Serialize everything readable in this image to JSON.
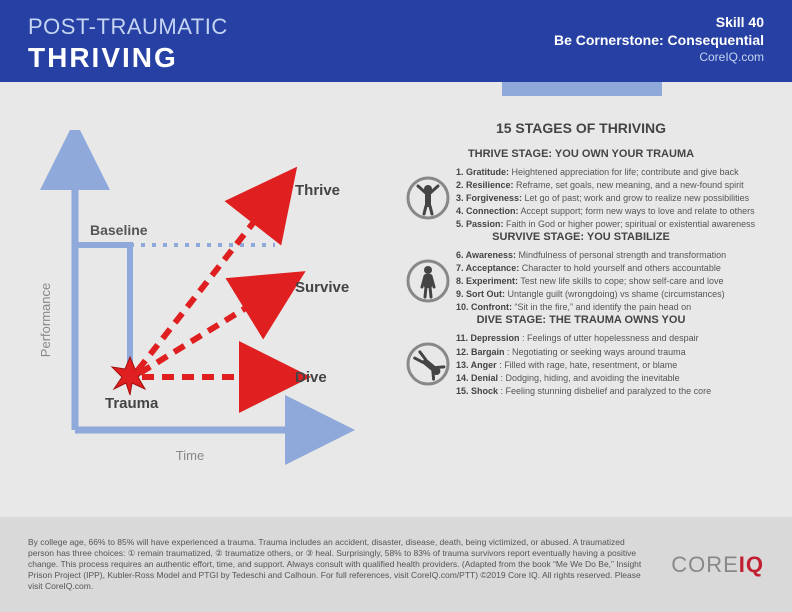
{
  "header": {
    "title_top": "POST-TRAUMATIC",
    "title_bottom": "THRIVING",
    "skill": "Skill 40",
    "subtitle": "Be Cornerstone: Consequential",
    "site": "CoreIQ.com",
    "bg_color": "#2641a3",
    "tab_color": "#90a9db"
  },
  "chart": {
    "axis_color": "#90a9db",
    "arrow_color": "#e02020",
    "baseline_color": "#90a9db",
    "y_label": "Performance",
    "x_label": "Time",
    "baseline_label": "Baseline",
    "trauma_label": "Trauma",
    "outcomes": [
      "Thrive",
      "Survive",
      "Dive"
    ]
  },
  "stages": {
    "main_title": "15 STAGES OF THRIVING",
    "groups": [
      {
        "heading": "THRIVE STAGE: YOU OWN YOUR TRAUMA",
        "icon": "thrive",
        "items": [
          {
            "n": "1.",
            "k": "Gratitude:",
            "v": "Heightened appreciation for life; contribute and give back"
          },
          {
            "n": "2.",
            "k": "Resilience:",
            "v": "Reframe, set goals, new meaning, and a new-found spirit"
          },
          {
            "n": "3.",
            "k": "Forgiveness:",
            "v": "Let go of past; work and grow to realize new possibilities"
          },
          {
            "n": "4.",
            "k": "Connection:",
            "v": "Accept support; form new ways to love and relate to others"
          },
          {
            "n": "5.",
            "k": "Passion:",
            "v": "Faith in God or higher power; spiritual or existential awareness"
          }
        ]
      },
      {
        "heading": "SURVIVE STAGE: YOU STABILIZE",
        "icon": "survive",
        "items": [
          {
            "n": "6.",
            "k": "Awareness:",
            "v": "Mindfulness of personal strength and transformation"
          },
          {
            "n": "7.",
            "k": "Acceptance:",
            "v": "Character to hold yourself and others accountable"
          },
          {
            "n": "8.",
            "k": "Experiment:",
            "v": "Test new life skills to cope; show self-care and love"
          },
          {
            "n": "9.",
            "k": "Sort Out:",
            "v": "Untangle guilt (wrongdoing) vs shame (circumstances)"
          },
          {
            "n": "10.",
            "k": "Confront:",
            "v": "“Sit in the fire,” and identify the pain head on"
          }
        ]
      },
      {
        "heading": "DIVE STAGE: THE TRAUMA OWNS YOU",
        "icon": "dive",
        "items": [
          {
            "n": "11.",
            "k": "Depression",
            "v": ": Feelings of utter hopelessness and despair"
          },
          {
            "n": "12.",
            "k": "Bargain",
            "v": ": Negotiating or seeking ways around trauma"
          },
          {
            "n": "13.",
            "k": "Anger",
            "v": ": Filled with rage, hate, resentment, or blame"
          },
          {
            "n": "14.",
            "k": "Denial",
            "v": ": Dodging, hiding, and avoiding the inevitable"
          },
          {
            "n": "15.",
            "k": "Shock",
            "v": ": Feeling stunning disbelief and paralyzed to the core"
          }
        ]
      }
    ]
  },
  "footer": {
    "text": "By college age, 66% to 85% will have experienced a trauma. Trauma includes an accident, disaster, disease, death, being victimized, or abused.  A traumatized person has three choices: ① remain traumatized, ② traumatize others, or ③ heal. Surprisingly, 58% to 83% of trauma survivors report eventually having a positive change. This process requires an authentic effort, time, and support. Always consult with qualified health providers. (Adapted from the book “Me We Do Be,” Insight Prison Project (IPP), Kubler-Ross Model and PTGI by Tedeschi and Calhoun. For full references, visit CoreIQ.com/PTT) ©2019 Core IQ. All rights reserved. Please visit CoreIQ.com.",
    "logo_a": "CORE",
    "logo_b": "IQ"
  }
}
